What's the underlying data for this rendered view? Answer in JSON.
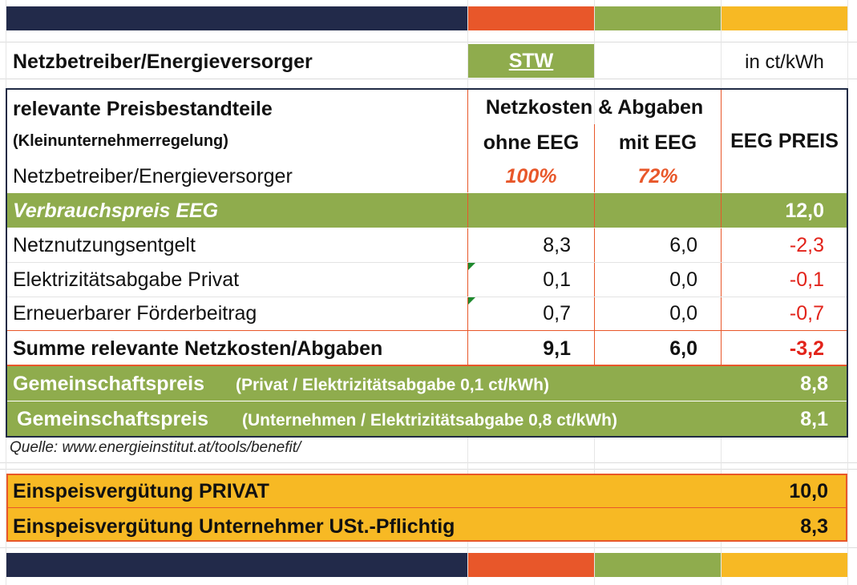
{
  "colors": {
    "navy": "#222a4a",
    "orange": "#e8572a",
    "green": "#8fac4d",
    "yellow": "#f7b924",
    "negative_red": "#e2231a"
  },
  "header": {
    "provider_label": "Netzbetreiber/Energieversorger",
    "provider_name": "STW",
    "unit": "in ct/kWh"
  },
  "table": {
    "title": "relevante Preisbestandteile",
    "subtitle": "(Kleinunternehmerregelung)",
    "group_header": "Netzkosten & Abgaben",
    "col_without": "ohne EEG",
    "col_with": "mit EEG",
    "col_price": "EEG PREIS",
    "row_provider_label": "Netzbetreiber/Energieversorger",
    "pct_without": "100%",
    "pct_with": "72%",
    "consumption_label": "Verbrauchspreis EEG",
    "consumption_value": "12,0",
    "rows": [
      {
        "label": "Netznutzungsentgelt",
        "without": "8,3",
        "with": "6,0",
        "diff": "-2,3"
      },
      {
        "label": "Elektrizitätsabgabe Privat",
        "without": "0,1",
        "with": "0,0",
        "diff": "-0,1"
      },
      {
        "label": "Erneuerbarer Förderbeitrag",
        "without": "0,7",
        "with": "0,0",
        "diff": "-0,7"
      }
    ],
    "sum": {
      "label": "Summe relevante Netzkosten/Abgaben",
      "without": "9,1",
      "with": "6,0",
      "diff": "-3,2"
    },
    "community_private": {
      "label_main": "Gemeinschaftspreis",
      "label_detail": "(Privat / Elektrizitätsabgabe 0,1 ct/kWh)",
      "value": "8,8"
    },
    "community_business": {
      "label_main": "Gemeinschaftspreis",
      "label_detail": "(Unternehmen / Elektrizitätsabgabe 0,8 ct/kWh)",
      "value": "8,1"
    }
  },
  "source": "Quelle: www.energieinstitut.at/tools/benefit/",
  "feed_in": {
    "private": {
      "label": "Einspeisvergütung PRIVAT",
      "value": "10,0"
    },
    "business": {
      "label": "Einspeisvergütung Unternehmer USt.-Pflichtig",
      "value": "8,3"
    }
  }
}
